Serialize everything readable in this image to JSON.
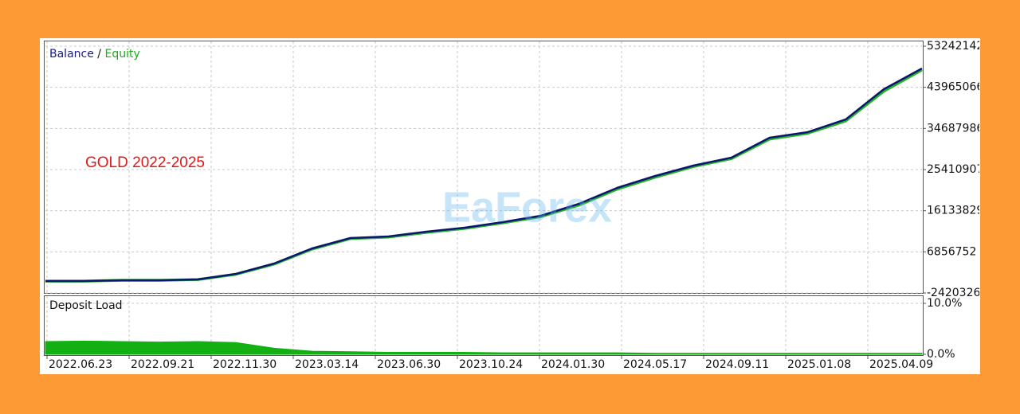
{
  "chart_data": [
    {
      "type": "line",
      "legend_separator": "/",
      "annotation": "GOLD  2022-2025",
      "watermark": "EaForex",
      "series": [
        {
          "name": "Balance",
          "color": "#0b1670",
          "values": [
            273000,
            273000,
            453000,
            453000,
            632000,
            1890000,
            4224000,
            7635000,
            9970000,
            10329000,
            11407000,
            12304000,
            13561000,
            14997000,
            17691000,
            21282000,
            23975000,
            26309000,
            28105000,
            32595000,
            33852000,
            36725000,
            43548000,
            48216000
          ]
        },
        {
          "name": "Equity",
          "color": "#22b422",
          "values": [
            260000,
            260000,
            430000,
            440000,
            610000,
            1800000,
            4100000,
            7500000,
            9850000,
            10200000,
            11250000,
            12150000,
            13400000,
            14800000,
            17400000,
            21000000,
            23700000,
            26100000,
            27900000,
            32300000,
            33600000,
            36400000,
            43100000,
            47900000
          ]
        }
      ],
      "ylim": [
        -2420326,
        53242142
      ],
      "yticks": [
        -2420326,
        6856752,
        16133829,
        25410907,
        34687986,
        43965066,
        53242142
      ],
      "grid": true
    },
    {
      "type": "area",
      "title": "Deposit Load",
      "color": "#12b012",
      "values": [
        2.5,
        2.6,
        2.5,
        2.4,
        2.5,
        2.3,
        1.2,
        0.6,
        0.5,
        0.4,
        0.4,
        0.4,
        0.3,
        0.3,
        0.3,
        0.3,
        0.2,
        0.2,
        0.2,
        0.2,
        0.2,
        0.2,
        0.2,
        0.2
      ],
      "ylim": [
        0,
        10
      ],
      "yticks": [
        {
          "value": 0,
          "label": "0.0%"
        },
        {
          "value": 10,
          "label": "10.0%"
        }
      ],
      "x_labels": [
        "2022.06.23",
        "2022.09.21",
        "2022.11.30",
        "2023.03.14",
        "2023.06.30",
        "2023.10.24",
        "2024.01.30",
        "2024.05.17",
        "2024.09.11",
        "2025.01.08",
        "2025.04.09"
      ],
      "grid": true
    }
  ]
}
